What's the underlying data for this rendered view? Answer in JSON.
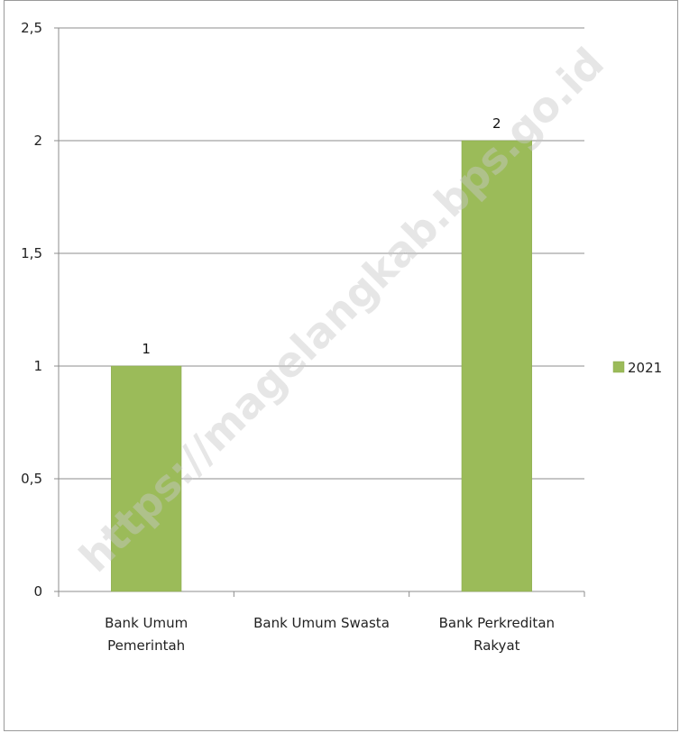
{
  "chart_data": {
    "type": "bar",
    "categories": [
      [
        "Bank Umum",
        "Pemerintah"
      ],
      [
        "Bank Umum Swasta"
      ],
      [
        "Bank Perkreditan",
        "Rakyat"
      ]
    ],
    "series": [
      {
        "name": "2021",
        "values": [
          1,
          0,
          2
        ],
        "color": "#9bbb59",
        "data_labels": [
          "1",
          "",
          "2"
        ]
      }
    ],
    "ylim": [
      0,
      2.5
    ],
    "yticks": [
      0,
      0.5,
      1,
      1.5,
      2,
      2.5
    ],
    "ytick_labels": [
      "0",
      "0,5",
      "1",
      "1,5",
      "2",
      "2,5"
    ],
    "grid": true,
    "legend_position": "right"
  },
  "watermark": "https://magelangkab.bps.go.id"
}
